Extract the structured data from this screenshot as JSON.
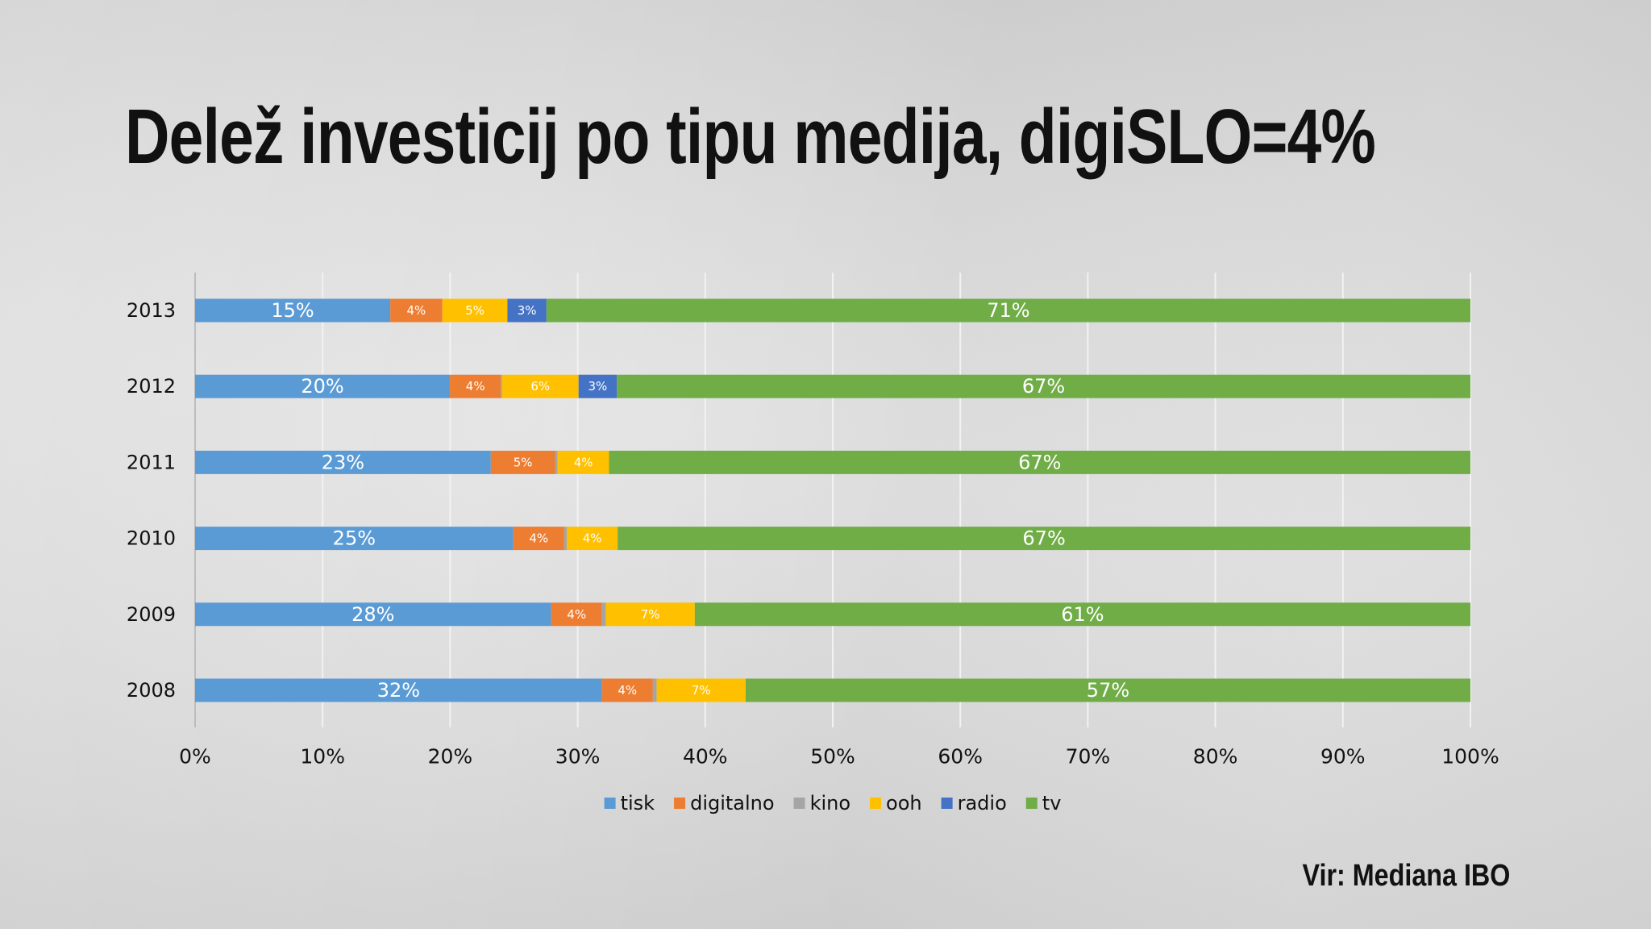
{
  "slide": {
    "title": "Delež investicij po tipu medija, digiSLO=4%",
    "source": "Vir: Mediana IBO"
  },
  "chart_data": {
    "type": "bar",
    "orientation": "horizontal",
    "stacked": "percent",
    "categories": [
      "2013",
      "2012",
      "2011",
      "2010",
      "2009",
      "2008"
    ],
    "series": [
      {
        "name": "tisk",
        "color": "#5b9bd5",
        "values": [
          15,
          20,
          23,
          25,
          28,
          32
        ],
        "labels": [
          "15%",
          "20%",
          "23%",
          "25%",
          "28%",
          "32%"
        ]
      },
      {
        "name": "digitalno",
        "color": "#ed7d31",
        "values": [
          4,
          4,
          5,
          4,
          4,
          4
        ],
        "labels": [
          "4%",
          "4%",
          "5%",
          "4%",
          "4%",
          "4%"
        ]
      },
      {
        "name": "kino",
        "color": "#a5a5a5",
        "values": [
          0,
          0.1,
          0.2,
          0.2,
          0.3,
          0.3
        ],
        "labels": [
          "",
          "",
          "",
          "",
          "",
          ""
        ]
      },
      {
        "name": "ooh",
        "color": "#ffc000",
        "values": [
          5,
          6,
          4,
          4,
          7,
          7
        ],
        "labels": [
          "5%",
          "6%",
          "4%",
          "4%",
          "7%",
          "7%"
        ]
      },
      {
        "name": "radio",
        "color": "#4472c4",
        "values": [
          3,
          3,
          0,
          0,
          0,
          0
        ],
        "labels": [
          "3%",
          "3%",
          "",
          "",
          "",
          ""
        ]
      },
      {
        "name": "tv",
        "color": "#70ad47",
        "values": [
          71,
          67,
          67,
          67,
          61,
          57
        ],
        "labels": [
          "71%",
          "67%",
          "67%",
          "67%",
          "61%",
          "57%"
        ]
      }
    ],
    "xticks": [
      "0%",
      "10%",
      "20%",
      "30%",
      "40%",
      "50%",
      "60%",
      "70%",
      "80%",
      "90%",
      "100%"
    ],
    "xlim": [
      0,
      100
    ],
    "grid": true,
    "legend_position": "bottom"
  }
}
